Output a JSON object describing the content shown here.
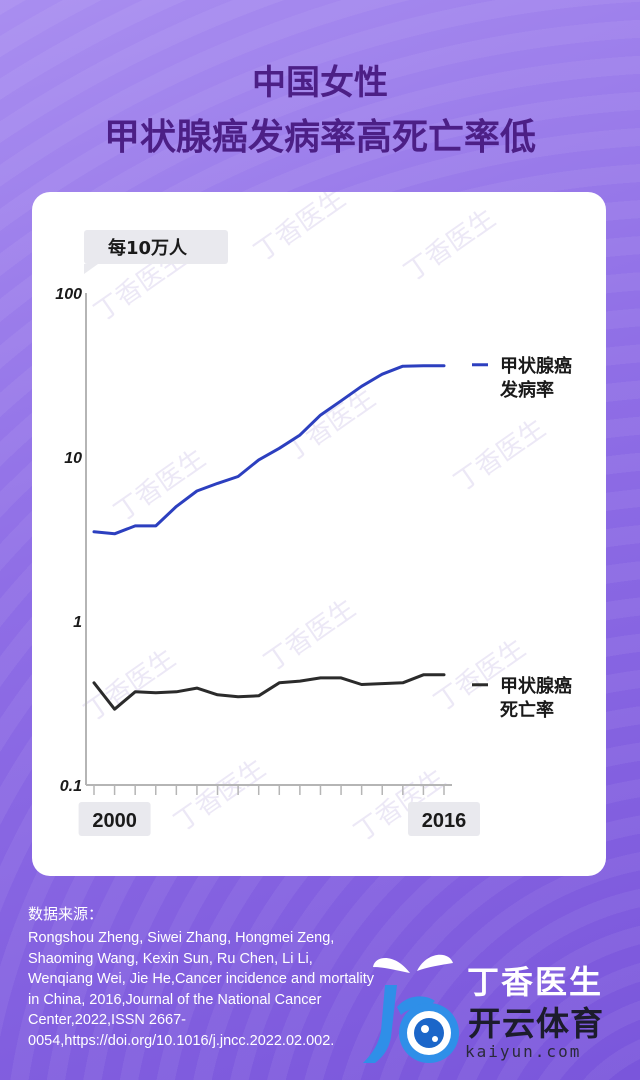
{
  "header": {
    "title_line1": "中国女性",
    "title_line2": "甲状腺癌发病率高死亡率低"
  },
  "chart_data": {
    "type": "line",
    "ylabel": "每10万人",
    "y_scale": "log",
    "ylim": [
      0.1,
      100
    ],
    "y_ticks": [
      "100",
      "10",
      "1",
      "0.1"
    ],
    "x_start": 1999,
    "x_end": 2016,
    "x_tick_labels": [
      {
        "year": 2000,
        "label": "2000"
      },
      {
        "year": 2016,
        "label": "2016"
      }
    ],
    "x": [
      1999,
      2000,
      2001,
      2002,
      2003,
      2004,
      2005,
      2006,
      2007,
      2008,
      2009,
      2010,
      2011,
      2012,
      2013,
      2014,
      2015,
      2016
    ],
    "series": [
      {
        "name": "甲状腺癌发病率",
        "legend_lines": [
          "甲状腺癌",
          "发病率"
        ],
        "color": "#2c3fbf",
        "values": [
          3.5,
          3.4,
          3.8,
          3.8,
          5.0,
          6.2,
          6.9,
          7.6,
          9.6,
          11.3,
          13.6,
          18.0,
          22.0,
          27.0,
          32.0,
          35.8,
          36.0,
          36.0
        ]
      },
      {
        "name": "甲状腺癌死亡率",
        "legend_lines": [
          "甲状腺癌",
          "死亡率"
        ],
        "color": "#2b2b2b",
        "values": [
          0.42,
          0.29,
          0.37,
          0.365,
          0.37,
          0.39,
          0.355,
          0.345,
          0.35,
          0.42,
          0.43,
          0.45,
          0.45,
          0.41,
          0.415,
          0.42,
          0.47,
          0.47
        ]
      }
    ],
    "grid": false
  },
  "source": {
    "label": "数据来源：",
    "text": "Rongshou Zheng, Siwei Zhang, Hongmei Zeng, Shaoming Wang, Kexin Sun, Ru Chen, Li Li, Wenqiang Wei, Jie He,Cancer incidence and mortality in China, 2016,Journal of the National Cancer Center,2022,ISSN 2667-0054,https://doi.org/10.1016/j.jncc.2022.02.002."
  },
  "logo": {
    "brand": "丁香医生",
    "name": "开云体育",
    "url": "kaiyun.com"
  },
  "watermark": "丁香医生",
  "colors": {
    "title": "#4c1f86",
    "background": "#8f6ee6",
    "card": "#ffffff"
  }
}
